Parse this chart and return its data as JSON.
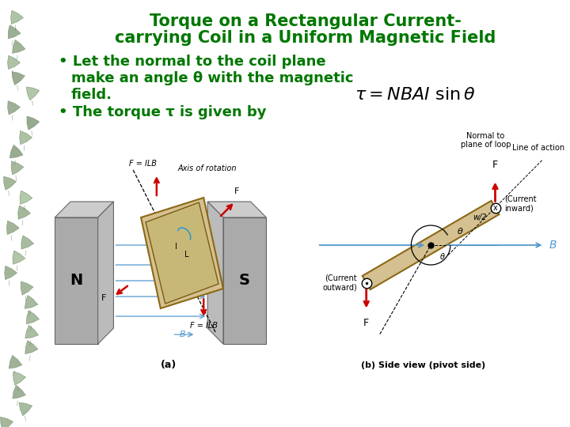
{
  "title_line1": "Torque on a Rectangular Current-",
  "title_line2": "carrying Coil in a Uniform Magnetic Field",
  "title_color": "#007700",
  "text_color": "#007700",
  "bg_color": "#ffffff",
  "fig_label_a": "(a)",
  "fig_label_b": "(b) Side view (pivot side)",
  "title_fontsize": 15,
  "bullet_fontsize": 13,
  "formula_fontsize": 14,
  "small_fontsize": 7,
  "ivy_color": "#b8c8a8"
}
